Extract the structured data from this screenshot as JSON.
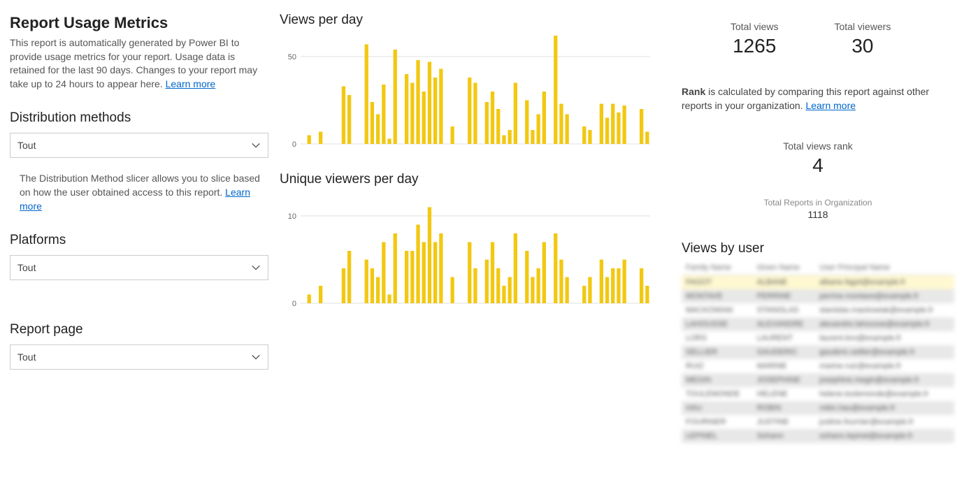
{
  "left": {
    "title": "Report Usage Metrics",
    "desc": "This report is automatically generated by Power BI to provide usage metrics for your report. Usage data is retained for the last 90 days. Changes to your report may take up to 24 hours to appear here. ",
    "learn_more": "Learn more",
    "dist_header": "Distribution methods",
    "dist_value": "Tout",
    "dist_helper": "The Distribution Method slicer allows you to slice based on how the user obtained access to this report. ",
    "dist_learn_more": "Learn more",
    "platforms_header": "Platforms",
    "platforms_value": "Tout",
    "page_header": "Report page",
    "page_value": "Tout"
  },
  "charts": {
    "views_title": "Views per day",
    "viewers_title": "Unique viewers per day",
    "bar_color": "#f2c811",
    "grid_color": "#e0e0e0",
    "axis_color": "#666666",
    "views": {
      "ylim": [
        0,
        60
      ],
      "ytick": 50,
      "values": [
        0,
        5,
        0,
        7,
        0,
        0,
        0,
        33,
        28,
        0,
        0,
        57,
        24,
        17,
        34,
        3,
        54,
        0,
        40,
        35,
        48,
        30,
        47,
        38,
        43,
        0,
        10,
        0,
        0,
        38,
        35,
        0,
        24,
        30,
        20,
        5,
        8,
        35,
        0,
        25,
        8,
        17,
        30,
        0,
        62,
        23,
        17,
        0,
        0,
        10,
        8,
        0,
        23,
        15,
        23,
        18,
        22,
        0,
        0,
        20,
        7
      ]
    },
    "viewers": {
      "ylim": [
        0,
        12
      ],
      "ytick": 10,
      "values": [
        0,
        1,
        0,
        2,
        0,
        0,
        0,
        4,
        6,
        0,
        0,
        5,
        4,
        3,
        7,
        1,
        8,
        0,
        6,
        6,
        9,
        7,
        11,
        7,
        8,
        0,
        3,
        0,
        0,
        7,
        4,
        0,
        5,
        7,
        4,
        2,
        3,
        8,
        0,
        6,
        3,
        4,
        7,
        0,
        8,
        5,
        3,
        0,
        0,
        2,
        3,
        0,
        5,
        3,
        4,
        4,
        5,
        0,
        0,
        4,
        2
      ]
    }
  },
  "kpi": {
    "total_views_label": "Total views",
    "total_views": "1265",
    "total_viewers_label": "Total viewers",
    "total_viewers": "30",
    "rank_desc_prefix": "Rank",
    "rank_desc_rest": " is calculated by comparing this report against other reports in your organization. ",
    "rank_learn_more": "Learn more",
    "rank_label": "Total views rank",
    "rank_value": "4",
    "org_label": "Total Reports in Organization",
    "org_value": "1118"
  },
  "users": {
    "title": "Views by user",
    "columns": [
      "Family Name",
      "Given Name",
      "User Principal Name"
    ],
    "rows": [
      [
        "FAGOT",
        "ALBANE",
        "albane.fagot@example.fr"
      ],
      [
        "MONTAVE",
        "PERRINE",
        "perrine.montave@example.fr"
      ],
      [
        "MACKOWIAK",
        "STANISLAS",
        "stanislas.mackowiak@example.fr"
      ],
      [
        "LAHOUSSE",
        "ALEXANDRE",
        "alexandre.lahousse@example.fr"
      ],
      [
        "LORS",
        "LAURENT",
        "laurent.lors@example.fr"
      ],
      [
        "SELLIER",
        "GAUDERIC",
        "gauderic.sellier@example.fr"
      ],
      [
        "RUIZ",
        "MARINE",
        "marine.ruiz@example.fr"
      ],
      [
        "MEGIN",
        "JOSEPHINE",
        "josephine.megin@example.fr"
      ],
      [
        "TOULEMONDE",
        "HELENE",
        "helene.toulemonde@example.fr"
      ],
      [
        "HAU",
        "ROBIN",
        "robin.hau@example.fr"
      ],
      [
        "FOURNIER",
        "JUSTINE",
        "justine.fournier@example.fr"
      ],
      [
        "LEPINEL",
        "Sohann",
        "sohann.lepinel@example.fr"
      ]
    ]
  }
}
